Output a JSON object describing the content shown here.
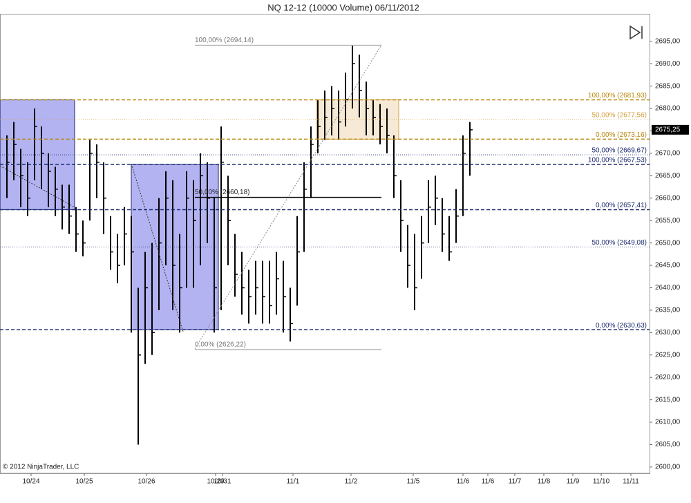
{
  "chart_data": {
    "type": "ohlc",
    "title": "NQ 12-12 (10000 Volume)  06/11/2012",
    "copyright": "© 2012 NinjaTrader, LLC",
    "xlim": [
      0,
      94
    ],
    "ylim": [
      2598.6,
      2701.9
    ],
    "xticks": [
      {
        "value": 4.5,
        "label": "10/24"
      },
      {
        "value": 12.2,
        "label": "10/25"
      },
      {
        "value": 21.2,
        "label": "10/26"
      },
      {
        "value": 31.2,
        "label": "10/29"
      },
      {
        "value": 32.2,
        "label": "10/31"
      },
      {
        "value": 42.4,
        "label": "11/1"
      },
      {
        "value": 50.8,
        "label": "11/2"
      },
      {
        "value": 59.8,
        "label": "11/5"
      },
      {
        "value": 67,
        "label": "11/6"
      },
      {
        "value": 70.6,
        "label": "11/6"
      },
      {
        "value": 74.5,
        "label": "11/7"
      },
      {
        "value": 78.7,
        "label": "11/8"
      },
      {
        "value": 82.9,
        "label": "11/9"
      },
      {
        "value": 87,
        "label": "11/10"
      },
      {
        "value": 91.3,
        "label": "11/11"
      }
    ],
    "yticks": [
      {
        "value": 2600,
        "label": "2600,00"
      },
      {
        "value": 2605,
        "label": "2605,00"
      },
      {
        "value": 2610,
        "label": "2610,00"
      },
      {
        "value": 2615,
        "label": "2615,00"
      },
      {
        "value": 2620,
        "label": "2620,00"
      },
      {
        "value": 2625,
        "label": "2625,00"
      },
      {
        "value": 2630,
        "label": "2630,00"
      },
      {
        "value": 2635,
        "label": "2635,00"
      },
      {
        "value": 2640,
        "label": "2640,00"
      },
      {
        "value": 2645,
        "label": "2645,00"
      },
      {
        "value": 2650,
        "label": "2650,00"
      },
      {
        "value": 2655,
        "label": "2655,00"
      },
      {
        "value": 2660,
        "label": "2660,00"
      },
      {
        "value": 2665,
        "label": "2665,00"
      },
      {
        "value": 2670,
        "label": "2670,00"
      },
      {
        "value": 2675,
        "label": "2675,00"
      },
      {
        "value": 2680,
        "label": "2680,00"
      },
      {
        "value": 2685,
        "label": "2685,00"
      },
      {
        "value": 2690,
        "label": "2690,00"
      },
      {
        "value": 2695,
        "label": "2695,00"
      }
    ],
    "color": "#000000",
    "series": [
      {
        "x": [
          1,
          2,
          3,
          4,
          5,
          6,
          7,
          8,
          9,
          10,
          11,
          12,
          13,
          14,
          15,
          16,
          17,
          18,
          19,
          20,
          21,
          22,
          23,
          24,
          25,
          26,
          27,
          28,
          29,
          30,
          31,
          32,
          33,
          34,
          35,
          36,
          37,
          38,
          39,
          40,
          41,
          42,
          43,
          44,
          45,
          46,
          47,
          48,
          49,
          50,
          51,
          52,
          53,
          54,
          55,
          56,
          57,
          58,
          59,
          60,
          61,
          62,
          63,
          64,
          65,
          66,
          67,
          68
        ],
        "close": [
          2668,
          2672,
          2665,
          2660,
          2676,
          2670,
          2666,
          2662,
          2658,
          2656,
          2652,
          2650,
          2670,
          2668,
          2660,
          2648,
          2645,
          2652,
          2648,
          2625,
          2640,
          2630,
          2650,
          2660,
          2645,
          2640,
          2660,
          2655,
          2665,
          2660,
          2640,
          2668,
          2655,
          2643,
          2640,
          2638,
          2640,
          2638,
          2636,
          2642,
          2638,
          2632,
          2648,
          2662,
          2672,
          2676,
          2678,
          2680,
          2677,
          2682,
          2690,
          2684,
          2680,
          2678,
          2676,
          2674,
          2665,
          2655,
          2645,
          2640,
          2650,
          2658,
          2660,
          2652,
          2648,
          2656,
          2670,
          2675.25
        ],
        "high": [
          2674,
          2677,
          2671,
          2668,
          2680,
          2676,
          2670,
          2667,
          2663,
          2663,
          2658,
          2655,
          2673,
          2672,
          2668,
          2656,
          2652,
          2658,
          2656,
          2640,
          2648,
          2650,
          2660,
          2666,
          2664,
          2652,
          2666,
          2664,
          2670,
          2668,
          2660,
          2676,
          2665,
          2652,
          2648,
          2644,
          2646,
          2646,
          2646,
          2648,
          2646,
          2640,
          2656,
          2668,
          2676,
          2682,
          2684,
          2685,
          2684,
          2688,
          2694,
          2692,
          2686,
          2682,
          2681,
          2680,
          2674,
          2664,
          2654,
          2652,
          2656,
          2664,
          2665,
          2660,
          2656,
          2662,
          2674,
          2677
        ],
        "low": [
          2660,
          2664,
          2658,
          2656,
          2664,
          2662,
          2658,
          2656,
          2653,
          2652,
          2648,
          2647,
          2655,
          2660,
          2652,
          2644,
          2641,
          2645,
          2630,
          2605,
          2623,
          2625,
          2635,
          2645,
          2635,
          2630,
          2640,
          2640,
          2645,
          2650,
          2630,
          2635,
          2645,
          2638,
          2634,
          2632,
          2634,
          2632,
          2632,
          2634,
          2630,
          2628,
          2636,
          2648,
          2660,
          2670,
          2673,
          2674,
          2673,
          2676,
          2680,
          2678,
          2674,
          2674,
          2672,
          2670,
          2660,
          2648,
          2640,
          2635,
          2642,
          2650,
          2654,
          2648,
          2646,
          2650,
          2656,
          2665
        ]
      }
    ],
    "boxes": [
      {
        "x": [
          0,
          10.8
        ],
        "y": [
          2657.41,
          2681.93
        ],
        "color": "#9999ee"
      },
      {
        "x": [
          19,
          31.6
        ],
        "y": [
          2630.63,
          2667.53
        ],
        "color": "#9999ee"
      },
      {
        "x": [
          45.8,
          57.7
        ],
        "y": [
          2673.16,
          2681.93
        ],
        "color": "#f3e3c8"
      }
    ],
    "levels": [
      {
        "label": "100,00% (2681,93)",
        "value": 2681.93,
        "color": "#b8860b",
        "dash": true
      },
      {
        "label": "50,00% (2677,56)",
        "value": 2677.56,
        "color": "#d4a040",
        "dash": false
      },
      {
        "label": "0,00% (2673,16)",
        "value": 2673.16,
        "color": "#b8860b",
        "dash": true
      },
      {
        "label": "50,00% (2669,67)",
        "value": 2669.67,
        "color": "#1a2a6c",
        "dash": false
      },
      {
        "label": "100,00% (2667,53)",
        "value": 2667.53,
        "color": "#1a2a6c",
        "dash": true
      },
      {
        "label": "0,00% (2657,41)",
        "value": 2657.41,
        "color": "#1a2a6c",
        "dash": true
      },
      {
        "label": "50,00% (2649,08)",
        "value": 2649.08,
        "color": "#1a2a6c",
        "dash": false
      },
      {
        "label": "0,00% (2630,63)",
        "value": 2630.63,
        "color": "#1a2a6c",
        "dash": true
      }
    ],
    "fib_lines": [
      {
        "label": "100,00% (2694,14)",
        "value": 2694.14,
        "x": [
          28.2,
          55.2
        ],
        "color": "#999999"
      },
      {
        "label": "50,00% (2660,18)",
        "value": 2660.18,
        "x": [
          28.2,
          55.2
        ],
        "color": "#000000"
      },
      {
        "label": "0,00% (2626,22)",
        "value": 2626.22,
        "x": [
          28.2,
          55.2
        ],
        "color": "#999999"
      }
    ],
    "last_price": {
      "value": 2675.25,
      "label": "2675,25"
    }
  }
}
